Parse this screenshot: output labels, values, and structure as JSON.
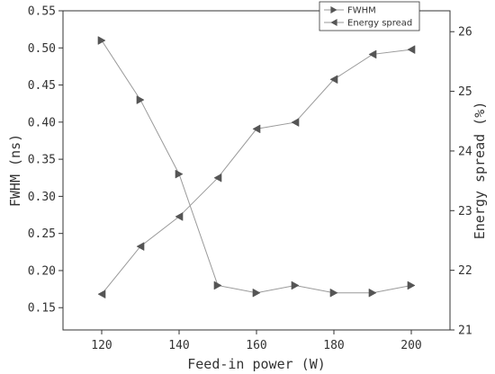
{
  "chart_data": {
    "type": "line",
    "x": [
      120,
      130,
      140,
      150,
      160,
      170,
      180,
      190,
      200
    ],
    "xlabel": "Feed-in power (W)",
    "xlim": [
      110,
      210
    ],
    "xticks": [
      120,
      140,
      160,
      180,
      200
    ],
    "y_left": {
      "label": "FWHM (ns)",
      "lim": [
        0.12,
        0.55
      ],
      "ticks": [
        "0.15",
        "0.20",
        "0.25",
        "0.30",
        "0.35",
        "0.40",
        "0.45",
        "0.50",
        "0.55"
      ]
    },
    "y_right": {
      "label": "Energy spread (%)",
      "lim": [
        21,
        26.35
      ],
      "ticks": [
        "21",
        "22",
        "23",
        "24",
        "25",
        "26"
      ]
    },
    "series": [
      {
        "name": "FWHM",
        "axis": "left",
        "marker": "triangle-right",
        "values": [
          0.51,
          0.43,
          0.33,
          0.18,
          0.17,
          0.18,
          0.17,
          0.17,
          0.18
        ]
      },
      {
        "name": "Energy spread",
        "axis": "right",
        "marker": "triangle-left",
        "values": [
          21.6,
          22.4,
          22.9,
          23.55,
          24.37,
          24.48,
          25.2,
          25.62,
          25.7
        ]
      }
    ],
    "legend_position": "top-right",
    "grid": false,
    "colors": {
      "line": "#9a9a9a",
      "marker": "#555555",
      "axis": "#333333"
    }
  }
}
